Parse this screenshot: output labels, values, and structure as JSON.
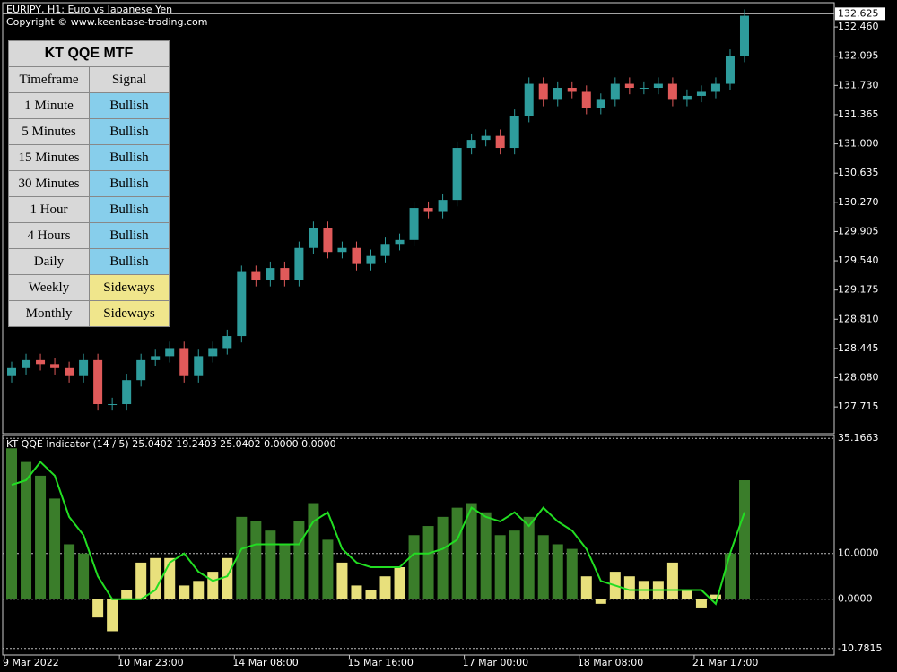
{
  "header": {
    "symbol": "EURJPY, H1:  Euro vs Japanese Yen",
    "copyright": "Copyright © www.keenbase-trading.com"
  },
  "table": {
    "title": "KT QQE MTF",
    "headers": [
      "Timeframe",
      "Signal"
    ],
    "rows": [
      {
        "timeframe": "1 Minute",
        "signal": "Bullish",
        "color": "#87ceeb"
      },
      {
        "timeframe": "5 Minutes",
        "signal": "Bullish",
        "color": "#87ceeb"
      },
      {
        "timeframe": "15 Minutes",
        "signal": "Bullish",
        "color": "#87ceeb"
      },
      {
        "timeframe": "30 Minutes",
        "signal": "Bullish",
        "color": "#87ceeb"
      },
      {
        "timeframe": "1 Hour",
        "signal": "Bullish",
        "color": "#87ceeb"
      },
      {
        "timeframe": "4 Hours",
        "signal": "Bullish",
        "color": "#87ceeb"
      },
      {
        "timeframe": "Daily",
        "signal": "Bullish",
        "color": "#87ceeb"
      },
      {
        "timeframe": "Weekly",
        "signal": "Sideways",
        "color": "#f0e68c"
      },
      {
        "timeframe": "Monthly",
        "signal": "Sideways",
        "color": "#f0e68c"
      }
    ]
  },
  "chart_data": [
    {
      "type": "candlestick",
      "up_color": "#2e9c9c",
      "down_color": "#e05a5a",
      "xlim": [
        -0.5,
        51.5
      ],
      "xticks": [
        {
          "value": 0,
          "label": "9 Mar 2022"
        },
        {
          "value": 8,
          "label": "10 Mar 23:00"
        },
        {
          "value": 16,
          "label": "14 Mar 08:00"
        },
        {
          "value": 24,
          "label": "15 Mar 16:00"
        },
        {
          "value": 32,
          "label": "17 Mar 00:00"
        },
        {
          "value": 40,
          "label": "18 Mar 08:00"
        },
        {
          "value": 48,
          "label": "21 Mar 17:00"
        }
      ],
      "ylim": [
        127.392,
        132.752
      ],
      "yticks": [
        {
          "value": 132.46,
          "label": "132.460"
        },
        132.095,
        {
          "value": 131.73,
          "label": "131.730"
        },
        131.365,
        {
          "value": 131.0,
          "label": "131.000"
        },
        130.635,
        {
          "value": 130.27,
          "label": "130.270"
        },
        129.905,
        {
          "value": 129.54,
          "label": "129.540"
        },
        129.175,
        {
          "value": 128.81,
          "label": "128.810"
        },
        128.445,
        {
          "value": 128.08,
          "label": "128.080"
        },
        127.715
      ],
      "last_price": 132.625,
      "open": [
        128.1,
        128.2,
        128.3,
        128.25,
        128.2,
        128.1,
        128.3,
        127.75,
        127.75,
        128.05,
        128.3,
        128.35,
        128.45,
        128.1,
        128.35,
        128.45,
        128.6,
        129.4,
        129.3,
        129.45,
        129.3,
        129.7,
        129.95,
        129.65,
        129.7,
        129.5,
        129.6,
        129.75,
        129.8,
        130.2,
        130.15,
        130.3,
        130.95,
        131.05,
        131.1,
        130.95,
        131.35,
        131.75,
        131.55,
        131.7,
        131.65,
        131.45,
        131.55,
        131.75,
        131.7,
        131.7,
        131.75,
        131.55,
        131.6,
        131.65,
        131.75,
        132.1
      ],
      "high": [
        128.28,
        128.38,
        128.38,
        128.33,
        128.28,
        128.38,
        128.38,
        127.83,
        128.13,
        128.38,
        128.43,
        128.53,
        128.53,
        128.43,
        128.53,
        128.68,
        129.48,
        129.48,
        129.53,
        129.53,
        129.78,
        130.03,
        130.03,
        129.78,
        129.78,
        129.68,
        129.83,
        129.88,
        130.28,
        130.28,
        130.38,
        131.03,
        131.13,
        131.18,
        131.18,
        131.43,
        131.83,
        131.83,
        131.78,
        131.78,
        131.73,
        131.63,
        131.83,
        131.83,
        131.78,
        131.83,
        131.83,
        131.68,
        131.73,
        131.83,
        132.18,
        132.68
      ],
      "low": [
        128.02,
        128.12,
        128.17,
        128.12,
        128.02,
        128.02,
        127.67,
        127.67,
        127.67,
        127.97,
        128.22,
        128.27,
        128.02,
        128.02,
        128.27,
        128.37,
        128.52,
        129.22,
        129.22,
        129.22,
        129.22,
        129.62,
        129.57,
        129.57,
        129.42,
        129.42,
        129.52,
        129.67,
        129.72,
        130.07,
        130.07,
        130.22,
        130.87,
        130.97,
        130.87,
        130.87,
        131.27,
        131.47,
        131.47,
        131.57,
        131.37,
        131.37,
        131.47,
        131.62,
        131.62,
        131.62,
        131.47,
        131.47,
        131.52,
        131.57,
        131.67,
        132.02
      ],
      "close": [
        128.2,
        128.3,
        128.25,
        128.2,
        128.1,
        128.3,
        127.75,
        127.75,
        128.05,
        128.3,
        128.35,
        128.45,
        128.1,
        128.35,
        128.45,
        128.6,
        129.4,
        129.3,
        129.45,
        129.3,
        129.7,
        129.95,
        129.65,
        129.7,
        129.5,
        129.6,
        129.75,
        129.8,
        130.2,
        130.15,
        130.3,
        130.95,
        131.05,
        131.1,
        130.95,
        131.35,
        131.75,
        131.55,
        131.7,
        131.65,
        131.45,
        131.55,
        131.75,
        131.7,
        131.7,
        131.75,
        131.55,
        131.6,
        131.65,
        131.75,
        132.1,
        132.6
      ]
    },
    {
      "type": "combo",
      "title": "KT QQE Indicator (14 / 5) 25.0402 19.2403 25.0402 0.0000 0.0000",
      "xlim": [
        -0.5,
        51.5
      ],
      "ylim": [
        -12,
        35.6
      ],
      "yticks": [
        35.1663,
        {
          "value": 10,
          "label": "10.0000"
        },
        {
          "value": 0,
          "label": "0.0000"
        },
        -10.7815
      ],
      "series": [
        {
          "kind": "bar",
          "values": [
            33,
            30,
            27,
            22,
            12,
            10,
            -4,
            -7,
            2,
            8,
            9,
            9,
            3,
            4,
            6,
            9,
            18,
            17,
            15,
            12,
            17,
            21,
            13,
            8,
            3,
            2,
            5,
            7,
            14,
            16,
            18,
            20,
            21,
            19,
            14,
            15,
            18,
            14,
            12,
            11,
            5,
            -1,
            6,
            5,
            4,
            4,
            8,
            2,
            -2,
            1,
            10,
            26
          ],
          "colors": [
            "#3a7d2a",
            "#3a7d2a",
            "#3a7d2a",
            "#3a7d2a",
            "#3a7d2a",
            "#3a7d2a",
            "#e8e07c",
            "#e8e07c",
            "#e8e07c",
            "#e8e07c",
            "#e8e07c",
            "#e8e07c",
            "#e8e07c",
            "#e8e07c",
            "#e8e07c",
            "#e8e07c",
            "#3a7d2a",
            "#3a7d2a",
            "#3a7d2a",
            "#3a7d2a",
            "#3a7d2a",
            "#3a7d2a",
            "#3a7d2a",
            "#e8e07c",
            "#e8e07c",
            "#e8e07c",
            "#e8e07c",
            "#e8e07c",
            "#3a7d2a",
            "#3a7d2a",
            "#3a7d2a",
            "#3a7d2a",
            "#3a7d2a",
            "#3a7d2a",
            "#3a7d2a",
            "#3a7d2a",
            "#3a7d2a",
            "#3a7d2a",
            "#3a7d2a",
            "#3a7d2a",
            "#e8e07c",
            "#e8e07c",
            "#e8e07c",
            "#e8e07c",
            "#e8e07c",
            "#e8e07c",
            "#e8e07c",
            "#e8e07c",
            "#e8e07c",
            "#e8e07c",
            "#3a7d2a",
            "#3a7d2a"
          ]
        },
        {
          "kind": "line",
          "color": "#22dd22",
          "values": [
            25,
            26,
            30,
            27,
            18,
            14,
            5,
            0,
            0,
            0,
            2,
            8,
            10,
            6,
            4,
            5,
            11,
            12,
            12,
            12,
            12,
            17,
            19,
            11,
            8,
            7,
            7,
            7,
            10,
            10,
            11,
            13,
            20,
            18,
            17,
            19,
            16,
            20,
            17,
            15,
            11,
            4,
            3,
            2,
            2,
            2,
            2,
            2,
            2,
            -1,
            10,
            19
          ]
        }
      ]
    }
  ]
}
